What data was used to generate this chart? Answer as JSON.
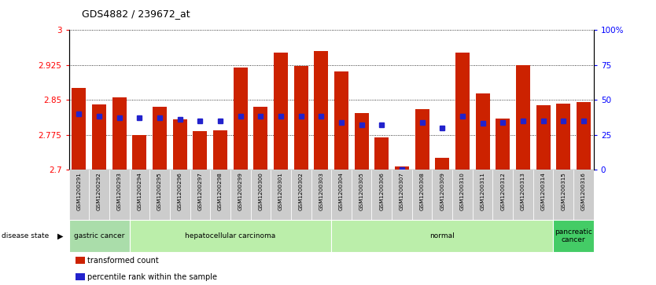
{
  "title": "GDS4882 / 239672_at",
  "samples": [
    "GSM1200291",
    "GSM1200292",
    "GSM1200293",
    "GSM1200294",
    "GSM1200295",
    "GSM1200296",
    "GSM1200297",
    "GSM1200298",
    "GSM1200299",
    "GSM1200300",
    "GSM1200301",
    "GSM1200302",
    "GSM1200303",
    "GSM1200304",
    "GSM1200305",
    "GSM1200306",
    "GSM1200307",
    "GSM1200308",
    "GSM1200309",
    "GSM1200310",
    "GSM1200311",
    "GSM1200312",
    "GSM1200313",
    "GSM1200314",
    "GSM1200315",
    "GSM1200316"
  ],
  "transformed_count": [
    2.875,
    2.84,
    2.855,
    2.775,
    2.835,
    2.808,
    2.782,
    2.785,
    2.92,
    2.835,
    2.952,
    2.923,
    2.955,
    2.91,
    2.822,
    2.769,
    2.706,
    2.83,
    2.726,
    2.952,
    2.864,
    2.81,
    2.924,
    2.838,
    2.842,
    2.845
  ],
  "percentile_rank": [
    40,
    38,
    37,
    37,
    37,
    36,
    35,
    35,
    38,
    38,
    38,
    38,
    38,
    34,
    32,
    32,
    0,
    34,
    30,
    38,
    33,
    34,
    35,
    35,
    35,
    35
  ],
  "groups": [
    {
      "label": "gastric cancer",
      "start": 0,
      "end": 3,
      "color": "#aaddaa"
    },
    {
      "label": "hepatocellular carcinoma",
      "start": 3,
      "end": 13,
      "color": "#bbeeaa"
    },
    {
      "label": "normal",
      "start": 13,
      "end": 24,
      "color": "#bbeeaa"
    },
    {
      "label": "pancreatic\ncancer",
      "start": 24,
      "end": 26,
      "color": "#44cc66"
    }
  ],
  "ylim_left": [
    2.7,
    3.0
  ],
  "ylim_right": [
    0,
    100
  ],
  "yticks_left": [
    2.7,
    2.775,
    2.85,
    2.925,
    3.0
  ],
  "ytick_labels_left": [
    "2.7",
    "2.775",
    "2.85",
    "2.925",
    "3"
  ],
  "yticks_right": [
    0,
    25,
    50,
    75,
    100
  ],
  "ytick_labels_right": [
    "0",
    "25",
    "50",
    "75",
    "100%"
  ],
  "bar_color": "#cc2200",
  "dot_color": "#2222cc",
  "tick_bg": "#cccccc",
  "white": "#ffffff"
}
